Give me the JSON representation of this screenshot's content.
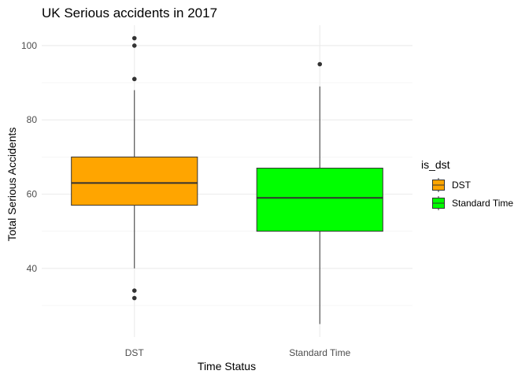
{
  "chart_data": {
    "type": "boxplot",
    "title": "UK Serious accidents in 2017",
    "xlabel": "Time Status",
    "ylabel": "Total Serious Accidents",
    "categories": [
      "DST",
      "Standard Time"
    ],
    "ylim": [
      21.5,
      105.5
    ],
    "yticks": [
      40,
      60,
      80,
      100
    ],
    "y_minor_ticks": [
      30,
      50,
      70,
      90
    ],
    "grid": true,
    "legend": {
      "title": "is_dst",
      "position": "right",
      "entries": [
        "DST",
        "Standard Time"
      ]
    },
    "boxes": [
      {
        "name": "DST",
        "color": "#FFA500",
        "whisker_low": 40,
        "q1": 57,
        "median": 63,
        "q3": 70,
        "whisker_high": 88,
        "outliers": [
          32,
          34,
          91,
          100,
          102
        ]
      },
      {
        "name": "Standard Time",
        "color": "#00FF00",
        "whisker_low": 25,
        "q1": 50,
        "median": 59,
        "q3": 67,
        "whisker_high": 89,
        "outliers": [
          95
        ]
      }
    ]
  }
}
